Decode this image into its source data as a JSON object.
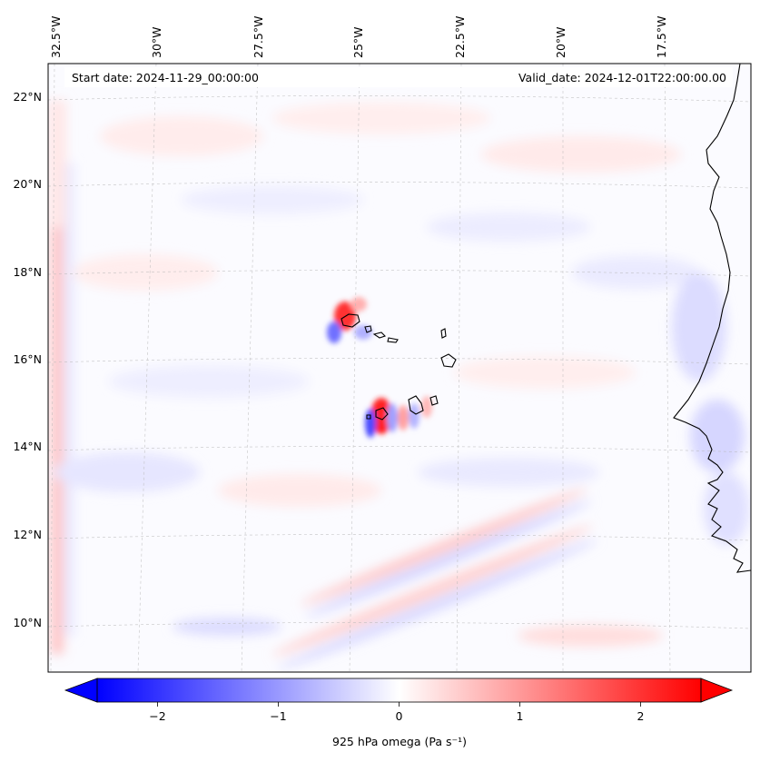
{
  "map": {
    "start_label": "Start date: 2024-11-29_00:00:00",
    "valid_label": "Valid_date: 2024-12-01T22:00:00.00",
    "lon_labels": [
      "32.5°W",
      "30°W",
      "27.5°W",
      "25°W",
      "22.5°W",
      "20°W",
      "17.5°W"
    ],
    "lat_labels": [
      "22°N",
      "20°N",
      "18°N",
      "16°N",
      "14°N",
      "12°N",
      "10°N"
    ],
    "colorbar": {
      "label": "925 hPa omega (Pa s⁻¹)",
      "ticks": [
        "−2",
        "−1",
        "0",
        "1",
        "2"
      ],
      "tick_values": [
        -2,
        -1,
        0,
        1,
        2
      ],
      "range": [
        -2.5,
        2.5
      ],
      "colormap": "bwr",
      "color_low": "#0000ff",
      "color_mid": "#ffffff",
      "color_high": "#ff0000"
    }
  }
}
